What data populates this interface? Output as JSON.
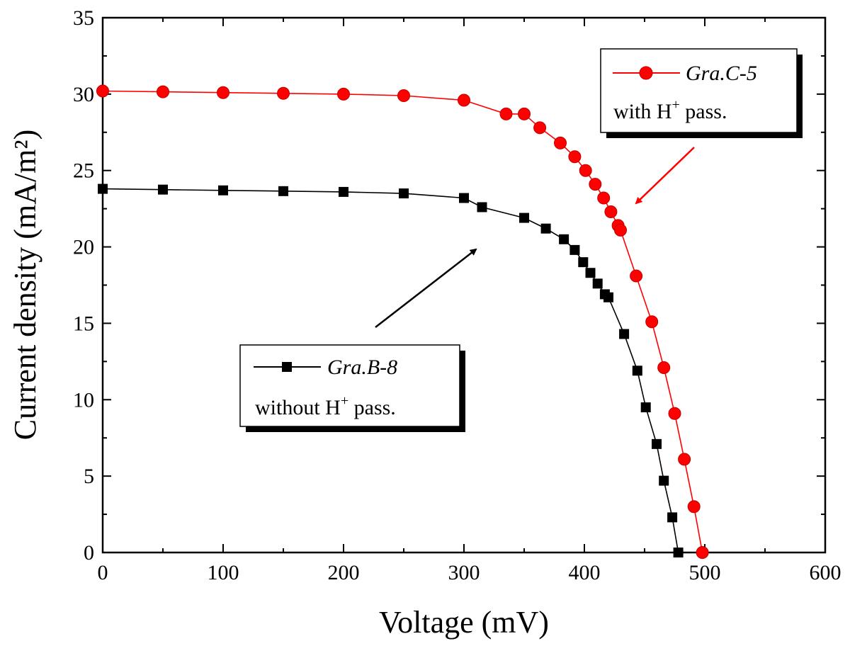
{
  "chart_data": {
    "type": "line",
    "xlabel": "Voltage (mV)",
    "ylabel": "Current density (mA/m²)",
    "xlim": [
      0,
      600
    ],
    "ylim": [
      0,
      35
    ],
    "xticks": [
      0,
      100,
      200,
      300,
      400,
      500,
      600
    ],
    "yticks": [
      0,
      5,
      10,
      15,
      20,
      25,
      30,
      35
    ],
    "grid": false,
    "series": [
      {
        "name": "Gra.C-5",
        "subtitle_pre": "with H",
        "subtitle_sup": "+",
        "subtitle_post": " pass.",
        "color": "#ff0000",
        "marker": "circle",
        "x": [
          0,
          50,
          100,
          150,
          200,
          250,
          300,
          335,
          350,
          363,
          380,
          392,
          401,
          409,
          416,
          422,
          428,
          430,
          443,
          456,
          466,
          475,
          483,
          491,
          498
        ],
        "y": [
          30.2,
          30.15,
          30.1,
          30.05,
          30.0,
          29.9,
          29.6,
          28.7,
          28.7,
          27.8,
          26.8,
          25.9,
          25.0,
          24.1,
          23.2,
          22.3,
          21.4,
          21.1,
          18.1,
          15.1,
          12.1,
          9.1,
          6.1,
          3.0,
          0
        ]
      },
      {
        "name": "Gra.B-8",
        "subtitle_pre": "without H",
        "subtitle_sup": "+",
        "subtitle_post": " pass.",
        "color": "#000000",
        "marker": "square",
        "x": [
          0,
          50,
          100,
          150,
          200,
          250,
          300,
          315,
          350,
          368,
          383,
          392,
          399,
          405,
          411,
          417,
          420,
          433,
          444,
          451,
          460,
          466,
          473,
          478
        ],
        "y": [
          23.8,
          23.75,
          23.7,
          23.65,
          23.6,
          23.5,
          23.2,
          22.6,
          21.9,
          21.2,
          20.5,
          19.8,
          19.0,
          18.3,
          17.6,
          16.9,
          16.7,
          14.3,
          11.9,
          9.5,
          7.1,
          4.7,
          2.3,
          0
        ]
      }
    ]
  }
}
